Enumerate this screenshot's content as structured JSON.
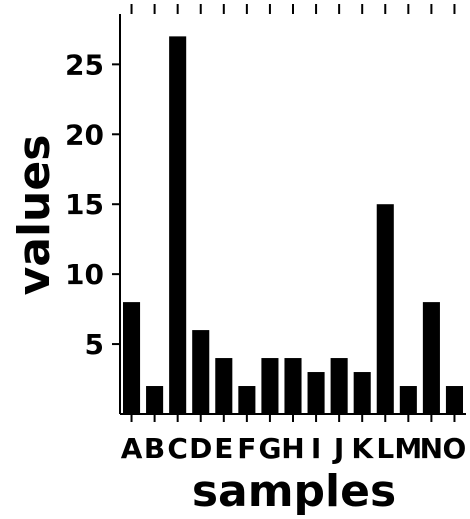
{
  "chart_data": {
    "type": "bar",
    "title": "",
    "xlabel": "samples",
    "ylabel": "values",
    "categories": [
      "A",
      "B",
      "C",
      "D",
      "E",
      "F",
      "G",
      "H",
      "I",
      "J",
      "K",
      "L",
      "M",
      "N",
      "O"
    ],
    "values": [
      8,
      2,
      27,
      6,
      4,
      2,
      4,
      4,
      3,
      4,
      3,
      15,
      2,
      8,
      2
    ],
    "ylim": [
      0,
      28.6
    ],
    "yticks": [
      5,
      10,
      15,
      20,
      25
    ],
    "bar_color": "#000000",
    "grid": false,
    "legend": "none"
  }
}
